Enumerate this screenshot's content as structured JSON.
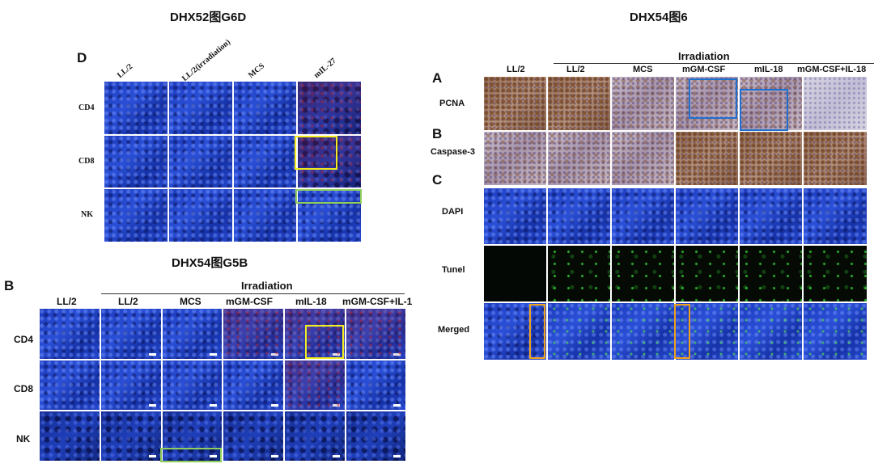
{
  "headings": {
    "g6d": "DHX52图G6D",
    "fig6": "DHX54图6",
    "g5b": "DHX54图G5B"
  },
  "panel_d": {
    "letter": "D",
    "columns": [
      "LL/2",
      "LL/2(irradiation)",
      "MCS",
      "mIL-27"
    ],
    "rows": [
      "CD4",
      "CD8",
      "NK"
    ]
  },
  "panel_b": {
    "letter": "B",
    "group_label": "Irradiation",
    "columns": [
      "LL/2",
      "LL/2",
      "MCS",
      "mGM-CSF",
      "mIL-18",
      "mGM-CSF+IL-1"
    ],
    "rows": [
      "CD4",
      "CD8",
      "NK"
    ]
  },
  "fig6": {
    "group_label": "Irradiation",
    "columns": [
      "LL/2",
      "LL/2",
      "MCS",
      "mGM-CSF",
      "mIL-18",
      "mGM-CSF+IL-18"
    ],
    "sections": [
      {
        "letter": "A",
        "rows": [
          "PCNA"
        ]
      },
      {
        "letter": "B",
        "rows": [
          "Caspase-3"
        ]
      },
      {
        "letter": "C",
        "rows": [
          "DAPI",
          "Tunel",
          "Merged"
        ]
      }
    ]
  },
  "highlight_colors": {
    "yellow": "#f4ec1c",
    "green": "#8fce5a",
    "blue": "#1f6fd1",
    "orange": "#f0a21c"
  }
}
